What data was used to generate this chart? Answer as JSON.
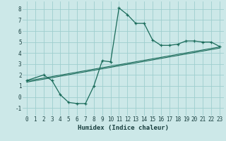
{
  "xlabel": "Humidex (Indice chaleur)",
  "background_color": "#cce8e8",
  "grid_color": "#9ecece",
  "line_color": "#1a6b5a",
  "xlim": [
    -0.5,
    23.5
  ],
  "ylim": [
    -1.7,
    8.7
  ],
  "xticks": [
    0,
    1,
    2,
    3,
    4,
    5,
    6,
    7,
    8,
    9,
    10,
    11,
    12,
    13,
    14,
    15,
    16,
    17,
    18,
    19,
    20,
    21,
    22,
    23
  ],
  "yticks": [
    -1,
    0,
    1,
    2,
    3,
    4,
    5,
    6,
    7,
    8
  ],
  "curve1_x": [
    0,
    2,
    3,
    4,
    5,
    6,
    7,
    8,
    9,
    10,
    11,
    12,
    13,
    14,
    15,
    16,
    17,
    18,
    19,
    20,
    21,
    22,
    23
  ],
  "curve1_y": [
    1.5,
    2.0,
    1.5,
    0.2,
    -0.5,
    -0.6,
    -0.6,
    1.0,
    3.3,
    3.2,
    8.1,
    7.5,
    6.7,
    6.7,
    5.2,
    4.7,
    4.7,
    4.8,
    5.1,
    5.1,
    5.0,
    5.0,
    4.6
  ],
  "trend1_x": [
    0,
    23
  ],
  "trend1_y": [
    1.45,
    4.55
  ],
  "trend2_x": [
    0,
    23
  ],
  "trend2_y": [
    1.35,
    4.45
  ],
  "xlabel_fontsize": 6.5,
  "tick_fontsize": 5.5
}
